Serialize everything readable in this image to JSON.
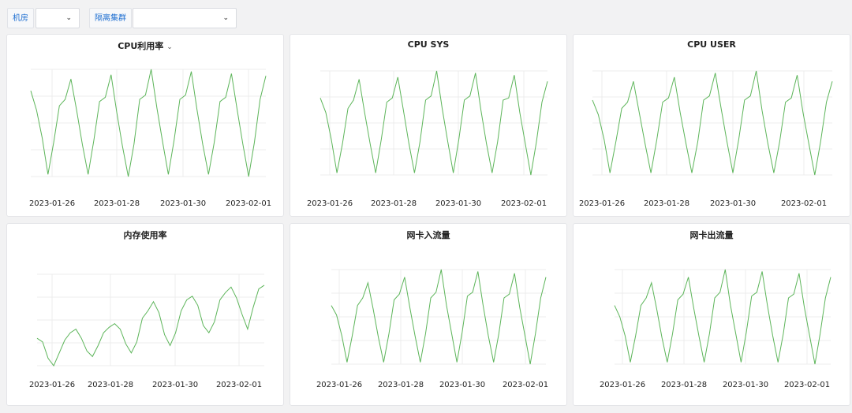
{
  "filters": {
    "room_label": "机房",
    "room_value": "",
    "cluster_label": "隔离集群",
    "cluster_value": ""
  },
  "x_ticks": [
    "2023-01-26",
    "2023-01-28",
    "2023-01-30",
    "2023-02-01"
  ],
  "chart_data": [
    {
      "type": "line",
      "title": "CPU利用率",
      "has_menu": true,
      "x_start": "2023-01-25",
      "x_end": "2023-02-02",
      "x_ticks": [
        "2023-01-26",
        "2023-01-28",
        "2023-01-30",
        "2023-02-01"
      ],
      "series": [
        {
          "name": "CPU利用率",
          "color": "#5db55a",
          "values": [
            0.8,
            0.62,
            0.36,
            0.02,
            0.32,
            0.66,
            0.72,
            0.91,
            0.62,
            0.3,
            0.02,
            0.34,
            0.7,
            0.74,
            0.95,
            0.6,
            0.28,
            0.0,
            0.3,
            0.72,
            0.76,
            1.0,
            0.64,
            0.32,
            0.02,
            0.34,
            0.72,
            0.76,
            0.98,
            0.62,
            0.3,
            0.02,
            0.32,
            0.7,
            0.74,
            0.96,
            0.62,
            0.3,
            0.0,
            0.32,
            0.72,
            0.94
          ]
        }
      ]
    },
    {
      "type": "line",
      "title": "CPU SYS",
      "has_menu": false,
      "x_start": "2023-01-25",
      "x_end": "2023-02-02",
      "x_ticks": [
        "2023-01-26",
        "2023-01-28",
        "2023-01-30",
        "2023-02-01"
      ],
      "series": [
        {
          "name": "CPU SYS",
          "color": "#5db55a",
          "values": [
            0.74,
            0.6,
            0.34,
            0.02,
            0.3,
            0.64,
            0.72,
            0.92,
            0.6,
            0.3,
            0.02,
            0.34,
            0.7,
            0.74,
            0.94,
            0.62,
            0.3,
            0.02,
            0.32,
            0.72,
            0.76,
            1.0,
            0.64,
            0.32,
            0.02,
            0.34,
            0.72,
            0.76,
            0.98,
            0.62,
            0.3,
            0.02,
            0.32,
            0.72,
            0.74,
            0.96,
            0.6,
            0.3,
            0.0,
            0.32,
            0.7,
            0.9
          ]
        }
      ]
    },
    {
      "type": "line",
      "title": "CPU USER",
      "has_menu": false,
      "x_start": "2023-01-25",
      "x_end": "2023-02-02",
      "x_ticks": [
        "2023-01-26",
        "2023-01-28",
        "2023-01-30",
        "2023-02-01"
      ],
      "series": [
        {
          "name": "CPU USER",
          "color": "#5db55a",
          "values": [
            0.72,
            0.58,
            0.34,
            0.02,
            0.32,
            0.64,
            0.7,
            0.9,
            0.6,
            0.3,
            0.02,
            0.34,
            0.7,
            0.74,
            0.94,
            0.6,
            0.3,
            0.02,
            0.32,
            0.72,
            0.76,
            0.98,
            0.64,
            0.32,
            0.02,
            0.34,
            0.72,
            0.76,
            1.0,
            0.62,
            0.3,
            0.02,
            0.32,
            0.7,
            0.74,
            0.96,
            0.6,
            0.3,
            0.0,
            0.32,
            0.7,
            0.9
          ]
        }
      ]
    },
    {
      "type": "line",
      "title": "内存使用率",
      "has_menu": false,
      "x_start": "2023-01-25",
      "x_end": "2023-02-02",
      "x_ticks": [
        "2023-01-26",
        "2023-01-28",
        "2023-01-30",
        "2023-02-01"
      ],
      "series": [
        {
          "name": "内存使用率",
          "color": "#5db55a",
          "values": [
            0.3,
            0.26,
            0.08,
            0.0,
            0.14,
            0.28,
            0.36,
            0.4,
            0.3,
            0.16,
            0.1,
            0.22,
            0.36,
            0.42,
            0.46,
            0.4,
            0.24,
            0.14,
            0.26,
            0.52,
            0.6,
            0.7,
            0.58,
            0.34,
            0.22,
            0.36,
            0.6,
            0.72,
            0.76,
            0.66,
            0.44,
            0.36,
            0.48,
            0.72,
            0.8,
            0.86,
            0.74,
            0.56,
            0.4,
            0.64,
            0.84,
            0.88
          ]
        }
      ]
    },
    {
      "type": "line",
      "title": "网卡入流量",
      "has_menu": false,
      "x_start": "2023-01-25",
      "x_end": "2023-02-02",
      "x_ticks": [
        "2023-01-26",
        "2023-01-28",
        "2023-01-30",
        "2023-02-01"
      ],
      "series": [
        {
          "name": "网卡入流量",
          "color": "#5db55a",
          "values": [
            0.62,
            0.52,
            0.3,
            0.02,
            0.3,
            0.62,
            0.7,
            0.86,
            0.58,
            0.28,
            0.02,
            0.32,
            0.68,
            0.74,
            0.92,
            0.6,
            0.3,
            0.02,
            0.32,
            0.7,
            0.76,
            1.0,
            0.62,
            0.32,
            0.02,
            0.34,
            0.72,
            0.76,
            0.98,
            0.62,
            0.3,
            0.02,
            0.32,
            0.7,
            0.74,
            0.96,
            0.6,
            0.3,
            0.0,
            0.32,
            0.7,
            0.92
          ]
        }
      ]
    },
    {
      "type": "line",
      "title": "网卡出流量",
      "has_menu": false,
      "x_start": "2023-01-25",
      "x_end": "2023-02-02",
      "x_ticks": [
        "2023-01-26",
        "2023-01-28",
        "2023-01-30",
        "2023-02-01"
      ],
      "series": [
        {
          "name": "网卡出流量",
          "color": "#5db55a",
          "values": [
            0.62,
            0.5,
            0.3,
            0.02,
            0.3,
            0.62,
            0.7,
            0.86,
            0.58,
            0.28,
            0.02,
            0.32,
            0.68,
            0.74,
            0.92,
            0.6,
            0.3,
            0.02,
            0.32,
            0.7,
            0.76,
            1.0,
            0.62,
            0.32,
            0.02,
            0.34,
            0.72,
            0.76,
            0.98,
            0.62,
            0.3,
            0.02,
            0.32,
            0.7,
            0.74,
            0.96,
            0.6,
            0.3,
            0.0,
            0.32,
            0.7,
            0.92
          ]
        }
      ]
    }
  ]
}
